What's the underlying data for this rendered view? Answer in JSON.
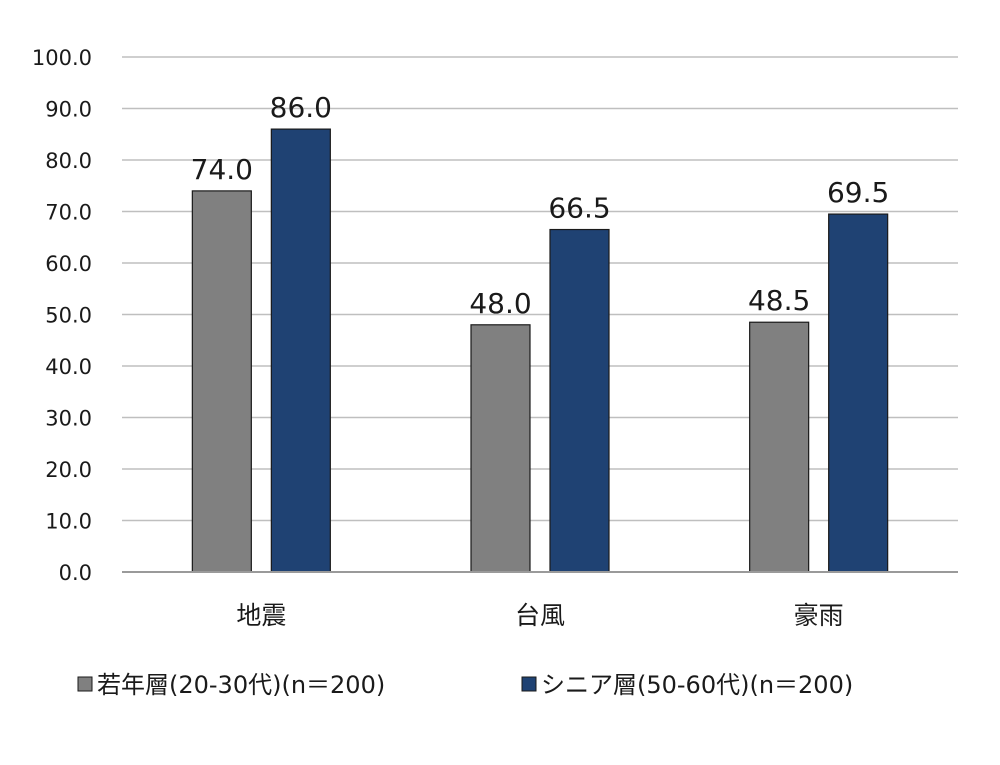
{
  "chart_data": {
    "type": "bar",
    "categories": [
      "地震",
      "台風",
      "豪雨"
    ],
    "series": [
      {
        "name": "若年層(20-30代)(n＝200)",
        "values": [
          74.0,
          48.0,
          48.5
        ],
        "color": "#808080"
      },
      {
        "name": "シニア層(50-60代)(n＝200)",
        "values": [
          86.0,
          66.5,
          69.5
        ],
        "color": "#1f4273"
      }
    ],
    "ylim": [
      0,
      100
    ],
    "yticks": [
      "0.0",
      "10.0",
      "20.0",
      "30.0",
      "40.0",
      "50.0",
      "60.0",
      "70.0",
      "80.0",
      "90.0",
      "100.0"
    ],
    "data_labels": [
      [
        "74.0",
        "48.0",
        "48.5"
      ],
      [
        "86.0",
        "66.5",
        "69.5"
      ]
    ],
    "grid": true,
    "legend_position": "bottom"
  }
}
